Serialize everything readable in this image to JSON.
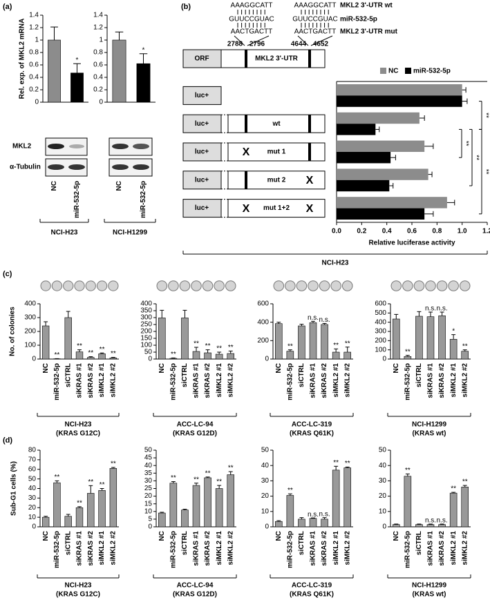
{
  "panel_labels": [
    "(a)",
    "(b)",
    "(c)",
    "(d)"
  ],
  "blot": {
    "rows": [
      "MKL2",
      "α-Tubulin"
    ]
  },
  "construct": {
    "wt_sequence": "AAAGGCATT",
    "mirna_sequence": "GUUCCGUAC",
    "mut_sequence": "AACTGACTT",
    "wt_label": "MKL2 3'-UTR wt",
    "mirna_label": "miR-532-5p",
    "mut_label": "MKL2 3'-UTR mut",
    "positions": [
      2788,
      2796,
      4644,
      4652
    ],
    "orf": "ORF",
    "utr": "MKL2 3'-UTR",
    "luc": "luc+",
    "mutation_mark": "X"
  },
  "chart_data": [
    {
      "type": "bar",
      "title": "NCI-H23",
      "ylabel": "Rel. exp. of MKL2 mRNA",
      "categories": [
        "NC",
        "miR-532-5p"
      ],
      "values": [
        1.0,
        0.47
      ],
      "errors": [
        0.21,
        0.15
      ],
      "annotations": [
        null,
        "*"
      ],
      "colors": [
        "#8c8c8c",
        "#000000"
      ],
      "ylim": [
        0,
        1.4
      ],
      "yticks": [
        0,
        0.2,
        0.4,
        0.6,
        0.8,
        1,
        1.2,
        1.4
      ]
    },
    {
      "type": "bar",
      "title": "NCI-H1299",
      "categories": [
        "NC",
        "miR-532-5p"
      ],
      "values": [
        1.0,
        0.62
      ],
      "errors": [
        0.13,
        0.16
      ],
      "annotations": [
        null,
        "*"
      ],
      "colors": [
        "#8c8c8c",
        "#000000"
      ],
      "ylim": [
        0,
        1.4
      ],
      "yticks": [
        0,
        0.2,
        0.4,
        0.6,
        0.8,
        1,
        1.2,
        1.4
      ]
    },
    {
      "type": "barh",
      "title": "NCI-H23",
      "xlabel": "Relative luciferase activity",
      "categories": [
        null,
        "wt",
        "mut 1",
        "mut 2",
        "mut 1+2"
      ],
      "series": [
        {
          "name": "NC",
          "color": "#8c8c8c",
          "values": [
            1.0,
            0.66,
            0.7,
            0.73,
            0.88
          ],
          "errors": [
            0.03,
            0.04,
            0.07,
            0.03,
            0.06
          ]
        },
        {
          "name": "miR-532-5p",
          "color": "#000000",
          "values": [
            1.0,
            0.31,
            0.43,
            0.42,
            0.7
          ],
          "errors": [
            0.04,
            0.03,
            0.04,
            0.03,
            0.07
          ]
        }
      ],
      "significance": [
        "**",
        "**",
        "**",
        "**"
      ],
      "xlim": [
        0,
        1.2
      ],
      "xticks": [
        {
          "value": 0,
          "label": "0.0"
        },
        0.2,
        0.4,
        0.6,
        0.8,
        {
          "value": 1,
          "label": "1.0"
        },
        1.2
      ]
    },
    {
      "type": "bar",
      "title": "NCI-H23",
      "subtitle": "(KRAS G12C)",
      "ylabel": "No. of colonies",
      "categories": [
        "NC",
        "miR-532-5p",
        "siCTRL",
        "siKRAS #1",
        "siKRAS #2",
        "siMKL2 #1",
        "siMKL2 #2"
      ],
      "values": [
        240,
        2,
        300,
        52,
        12,
        38,
        8
      ],
      "errors": [
        30,
        1,
        45,
        15,
        5,
        6,
        4
      ],
      "annotations": [
        null,
        "**",
        null,
        "**",
        "**",
        "**",
        "**"
      ],
      "color": "#999999",
      "ylim": [
        0,
        400
      ],
      "yticks": [
        0,
        100,
        200,
        300,
        400
      ]
    },
    {
      "type": "bar",
      "title": "ACC-LC-94",
      "subtitle": "(KRAS G12D)",
      "categories": [
        "NC",
        "miR-532-5p",
        "siCTRL",
        "siKRAS #1",
        "siKRAS #2",
        "siMKL2 #1",
        "siMKL2 #2"
      ],
      "values": [
        298,
        5,
        298,
        55,
        45,
        35,
        40
      ],
      "errors": [
        55,
        3,
        55,
        30,
        22,
        15,
        18
      ],
      "annotations": [
        null,
        "**",
        null,
        "**",
        "**",
        "**",
        "**"
      ],
      "color": "#999999",
      "ylim": [
        0,
        400
      ],
      "yticks": [
        0,
        50,
        100,
        150,
        200,
        250,
        300,
        350,
        400
      ]
    },
    {
      "type": "bar",
      "title": "ACC-LC-319",
      "subtitle": "(KRAS Q61K)",
      "categories": [
        "NC",
        "miR-532-5p",
        "siCTRL",
        "siKRAS #1",
        "siKRAS #2",
        "siMKL2 #1",
        "siMKL2 #2"
      ],
      "values": [
        385,
        85,
        360,
        395,
        375,
        75,
        75
      ],
      "errors": [
        15,
        15,
        18,
        15,
        12,
        35,
        55
      ],
      "annotations": [
        null,
        "**",
        null,
        "n.s.",
        "n.s.",
        "**",
        "**"
      ],
      "color": "#999999",
      "ylim": [
        0,
        600
      ],
      "yticks": [
        0,
        200,
        400,
        600
      ]
    },
    {
      "type": "bar",
      "title": "NCI-H1299",
      "subtitle": "(KRAS wt)",
      "categories": [
        "NC",
        "miR-532-5p",
        "siCTRL",
        "siKRAS #1",
        "siKRAS #2",
        "siMKL2 #1",
        "siMKL2 #2"
      ],
      "values": [
        435,
        28,
        465,
        460,
        470,
        215,
        85
      ],
      "errors": [
        50,
        12,
        50,
        50,
        40,
        50,
        15
      ],
      "annotations": [
        null,
        "**",
        null,
        "n.s.",
        "n.s.",
        "*",
        "**"
      ],
      "color": "#999999",
      "ylim": [
        0,
        600
      ],
      "yticks": [
        0,
        100,
        200,
        300,
        400,
        500,
        600
      ]
    },
    {
      "type": "bar",
      "title": "NCI-H23",
      "subtitle": "(KRAS G12C)",
      "ylabel": "Sub-G1 cells (%)",
      "categories": [
        "NC",
        "miR-532-5p",
        "siCTRL",
        "siKRAS #1",
        "siKRAS #2",
        "siMKL2 #1",
        "siMKL2 #2"
      ],
      "values": [
        10,
        46,
        11,
        20,
        35,
        38,
        61
      ],
      "errors": [
        1,
        2,
        2,
        1,
        8,
        2,
        1
      ],
      "annotations": [
        null,
        "**",
        null,
        "**",
        "**",
        "**",
        "**"
      ],
      "color": "#999999",
      "ylim": [
        0,
        80
      ],
      "yticks": [
        0,
        10,
        20,
        30,
        40,
        50,
        60,
        70,
        80
      ]
    },
    {
      "type": "bar",
      "title": "ACC-LC-94",
      "subtitle": "(KRAS G12D)",
      "categories": [
        "NC",
        "miR-532-5p",
        "siCTRL",
        "siKRAS #1",
        "siKRAS #2",
        "siMKL2 #1",
        "siMKL2 #2"
      ],
      "values": [
        9,
        28.5,
        11,
        27,
        32,
        25,
        34
      ],
      "errors": [
        0.5,
        1,
        0.5,
        1.5,
        0.5,
        2,
        2
      ],
      "annotations": [
        null,
        "**",
        null,
        "**",
        "**",
        "**",
        "**"
      ],
      "color": "#999999",
      "ylim": [
        0,
        50
      ],
      "yticks": [
        0,
        5,
        10,
        15,
        20,
        25,
        30,
        35,
        40,
        45,
        50
      ]
    },
    {
      "type": "bar",
      "title": "ACC-LC-319",
      "subtitle": "(KRAS Q61K)",
      "categories": [
        "NC",
        "miR-532-5p",
        "siCTRL",
        "siKRAS #1",
        "siKRAS #2",
        "siMKL2 #1",
        "siMKL2 #2"
      ],
      "values": [
        3.5,
        20.5,
        5,
        5.5,
        5,
        37,
        38.5
      ],
      "errors": [
        0.5,
        1,
        1,
        0.3,
        1,
        2.5,
        0.5
      ],
      "annotations": [
        null,
        "**",
        null,
        "n.s.",
        "n.s.",
        "**",
        "**"
      ],
      "color": "#999999",
      "ylim": [
        0,
        50
      ],
      "yticks": [
        0,
        10,
        20,
        30,
        40,
        50
      ]
    },
    {
      "type": "bar",
      "title": "NCI-H1299",
      "subtitle": "(KRAS wt)",
      "categories": [
        "NC",
        "miR-532-5p",
        "siCTRL",
        "siKRAS #1",
        "siKRAS #2",
        "siMKL2 #1",
        "siMKL2 #2"
      ],
      "values": [
        1.5,
        33,
        1.5,
        1.5,
        1.5,
        22,
        26
      ],
      "errors": [
        0.3,
        1.5,
        0.3,
        0.3,
        0.3,
        0.5,
        1
      ],
      "annotations": [
        null,
        "**",
        null,
        "n.s.",
        "n.s.",
        "**",
        "**"
      ],
      "color": "#999999",
      "ylim": [
        0,
        50
      ],
      "yticks": [
        0,
        10,
        20,
        30,
        40,
        50
      ]
    }
  ]
}
